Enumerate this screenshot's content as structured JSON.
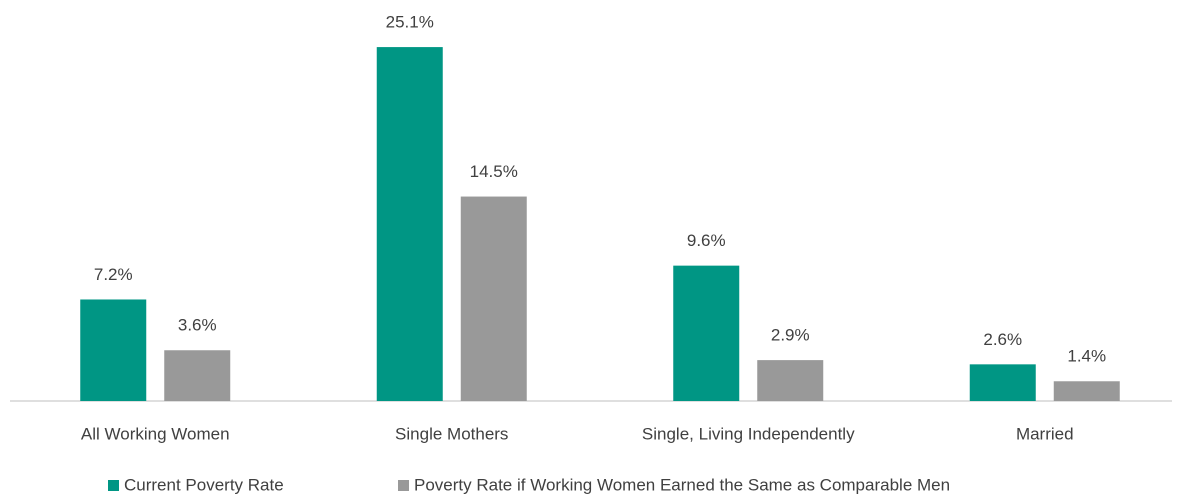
{
  "chart_data": {
    "type": "bar",
    "categories": [
      "All Working Women",
      "Single Mothers",
      "Single, Living Independently",
      "Married"
    ],
    "series": [
      {
        "name": "Current Poverty Rate",
        "color": "#009684",
        "values": [
          7.2,
          25.1,
          9.6,
          2.6
        ],
        "value_labels": [
          "7.2%",
          "25.1%",
          "9.6%",
          "2.6%"
        ]
      },
      {
        "name": "Poverty Rate if Working Women Earned the Same as Comparable Men",
        "color": "#999999",
        "values": [
          3.6,
          14.5,
          2.9,
          1.4
        ],
        "value_labels": [
          "3.6%",
          "14.5%",
          "2.9%",
          "1.4%"
        ]
      }
    ],
    "legend": "bottom"
  }
}
